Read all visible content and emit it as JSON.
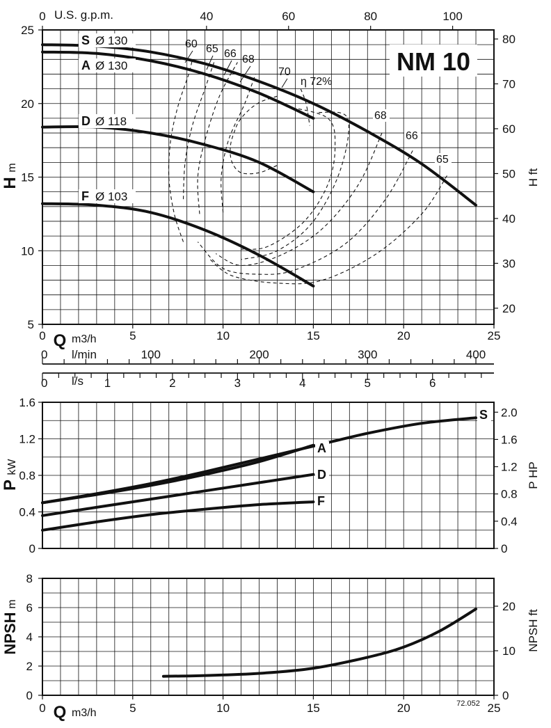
{
  "chart_data": [
    {
      "type": "line",
      "title": "NM 10",
      "xlabel": "Q m3/h",
      "xlabel_main": "Q",
      "xlabel_unit": "m3/h",
      "ylabel_main": "H",
      "ylabel_unit": "m",
      "ylabel_right": "H ft",
      "xlim": [
        0,
        25
      ],
      "ylim": [
        5,
        25
      ],
      "x_ticks": [
        0,
        5,
        10,
        15,
        20,
        25
      ],
      "y_ticks": [
        5,
        10,
        15,
        20,
        25
      ],
      "y_right_ticks": [
        20,
        30,
        40,
        50,
        60,
        70,
        80
      ],
      "top_axis_label": "U.S. g.p.m.",
      "top_axis_ticks": [
        0,
        40,
        60,
        80,
        100
      ],
      "grid": true,
      "series": [
        {
          "name": "S",
          "label": "S Ø 130",
          "x": [
            0,
            3,
            6,
            9,
            12,
            15,
            18,
            21,
            24
          ],
          "y": [
            24.0,
            23.9,
            23.5,
            22.7,
            21.5,
            20.0,
            18.1,
            15.9,
            13.1
          ]
        },
        {
          "name": "A",
          "label": "A Ø 130",
          "x": [
            0,
            3,
            6,
            9,
            12,
            15
          ],
          "y": [
            23.5,
            23.4,
            22.9,
            22.0,
            20.7,
            19.0
          ]
        },
        {
          "name": "D",
          "label": "D Ø 118",
          "x": [
            0,
            3,
            6,
            9,
            12,
            15
          ],
          "y": [
            18.4,
            18.4,
            18.0,
            17.2,
            16.0,
            14.0
          ]
        },
        {
          "name": "F",
          "label": "F Ø 103",
          "x": [
            0,
            3,
            6,
            9,
            12,
            15
          ],
          "y": [
            13.2,
            13.1,
            12.6,
            11.4,
            9.7,
            7.6
          ]
        }
      ],
      "efficiency_contours": [
        {
          "label": "60",
          "points": [
            [
              7.8,
              10.6
            ],
            [
              7.3,
              12.5
            ],
            [
              7.0,
              15.0
            ],
            [
              7.1,
              17.5
            ],
            [
              7.5,
              19.8
            ],
            [
              8.1,
              22.0
            ],
            [
              8.3,
              23.0
            ]
          ]
        },
        {
          "label": "65",
          "points": [
            [
              7.8,
              13.5
            ],
            [
              7.9,
              16.0
            ],
            [
              8.3,
              18.5
            ],
            [
              9.0,
              21.0
            ],
            [
              9.5,
              22.8
            ]
          ]
        },
        {
          "label": "66",
          "points": [
            [
              8.7,
              12.5
            ],
            [
              8.6,
              15.0
            ],
            [
              9.0,
              17.5
            ],
            [
              9.8,
              20.5
            ],
            [
              10.8,
              22.8
            ]
          ]
        },
        {
          "label": "68",
          "points": [
            [
              10.0,
              12.6
            ],
            [
              9.9,
              15.0
            ],
            [
              10.3,
              17.5
            ],
            [
              11.2,
              20.0
            ],
            [
              11.8,
              22.0
            ]
          ]
        },
        {
          "label": "70",
          "points": [
            [
              14.3,
              21.0
            ],
            [
              14.6,
              20.0
            ],
            [
              14.8,
              18.5
            ]
          ]
        },
        {
          "label": "η 72%",
          "points": [
            [
              13.0,
              20.5
            ],
            [
              11.9,
              20.0
            ],
            [
              11.0,
              19.0
            ],
            [
              10.6,
              18.0
            ],
            [
              10.4,
              17.0
            ],
            [
              10.5,
              16.0
            ],
            [
              11.0,
              15.3
            ],
            [
              12.0,
              15.3
            ],
            [
              13.0,
              15.8
            ]
          ]
        }
      ],
      "efficiency_labels_right": [
        "68",
        "66",
        "65"
      ]
    },
    {
      "type": "line",
      "ylabel_main": "P",
      "ylabel_unit": "kW",
      "ylabel_right": "P HP",
      "xlim": [
        0,
        25
      ],
      "ylim": [
        0,
        1.6
      ],
      "x_ticks": [
        0,
        5,
        10,
        15,
        20,
        25
      ],
      "y_ticks": [
        "0",
        "0.4",
        "0.8",
        "1.2",
        "1.6"
      ],
      "y_ticks_values": [
        0,
        0.4,
        0.8,
        1.2,
        1.6
      ],
      "y_right_ticks": [
        "0",
        "0.4",
        "0.8",
        "1.2",
        "1.6",
        "2.0"
      ],
      "y_right_values": [
        0,
        0.4,
        0.8,
        1.2,
        1.6,
        2.0
      ],
      "grid": true,
      "series": [
        {
          "name": "S",
          "x": [
            0,
            3,
            6,
            9,
            12,
            15,
            18,
            21,
            24
          ],
          "y": [
            0.5,
            0.6,
            0.71,
            0.84,
            0.98,
            1.12,
            1.26,
            1.37,
            1.43
          ]
        },
        {
          "name": "A",
          "x": [
            0,
            3,
            6,
            9,
            12,
            15
          ],
          "y": [
            0.5,
            0.59,
            0.69,
            0.81,
            0.95,
            1.13
          ]
        },
        {
          "name": "D",
          "x": [
            0,
            3,
            6,
            9,
            12,
            15
          ],
          "y": [
            0.36,
            0.45,
            0.54,
            0.63,
            0.72,
            0.81
          ]
        },
        {
          "name": "F",
          "x": [
            0,
            3,
            6,
            9,
            12,
            15
          ],
          "y": [
            0.2,
            0.29,
            0.37,
            0.43,
            0.48,
            0.51
          ]
        }
      ]
    },
    {
      "type": "line",
      "xlabel_main": "Q",
      "xlabel_unit": "m3/h",
      "ylabel_main": "NPSH",
      "ylabel_unit": "m",
      "ylabel_right": "NPSH ft",
      "xlim": [
        0,
        25
      ],
      "ylim": [
        0,
        8
      ],
      "x_ticks": [
        0,
        5,
        10,
        15,
        20,
        25
      ],
      "y_ticks": [
        0,
        2,
        4,
        6,
        8
      ],
      "y_right_ticks": [
        0,
        10,
        20
      ],
      "grid": true,
      "series": [
        {
          "name": "NPSH",
          "x": [
            6.7,
            9,
            12,
            15,
            18,
            20,
            22,
            24
          ],
          "y": [
            1.3,
            1.35,
            1.5,
            1.85,
            2.6,
            3.3,
            4.4,
            5.9
          ]
        }
      ]
    }
  ],
  "secondary_axes": {
    "lmin_label": "l/min",
    "lmin_ticks": [
      0,
      100,
      200,
      300,
      400
    ],
    "ls_label": "l/s",
    "ls_ticks": [
      0,
      1,
      2,
      3,
      4,
      5,
      6
    ]
  },
  "figure_code": "72.052"
}
